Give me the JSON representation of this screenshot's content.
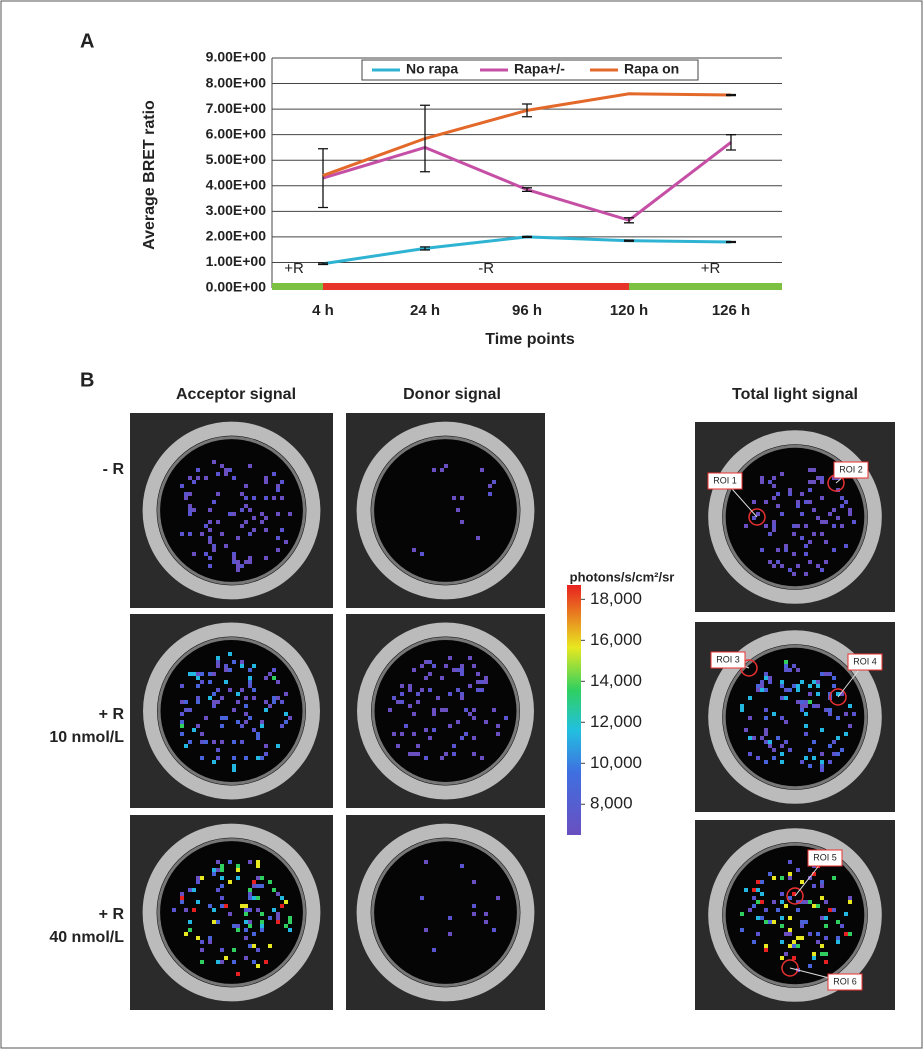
{
  "chart_data": {
    "type": "line",
    "panel": "A",
    "ylabel": "Average BRET ratio",
    "xlabel": "Time points",
    "categories": [
      "4 h",
      "24 h",
      "96 h",
      "120 h",
      "126 h"
    ],
    "series": [
      {
        "name": "No rapa",
        "color": "#2fb3d3",
        "values": [
          0.95,
          1.55,
          2.0,
          1.85,
          1.8
        ],
        "errors": [
          0.03,
          0.06,
          0.02,
          0.02,
          0.02
        ]
      },
      {
        "name": "Rapa+/-",
        "color": "#c64fa6",
        "values": [
          4.3,
          5.5,
          3.85,
          2.65,
          5.7
        ],
        "errors": [
          1.15,
          0,
          0.07,
          0.1,
          0.3
        ]
      },
      {
        "name": "Rapa on",
        "color": "#e3692a",
        "values": [
          4.4,
          5.85,
          6.95,
          7.6,
          7.55
        ],
        "errors": [
          0,
          1.3,
          0.25,
          0,
          0.02
        ]
      }
    ],
    "ylim": [
      0,
      9
    ],
    "yticks": [
      {
        "value": 0,
        "label": "0.00E+00"
      },
      {
        "value": 1,
        "label": "1.00E+00"
      },
      {
        "value": 2,
        "label": "2.00E+00"
      },
      {
        "value": 3,
        "label": "3.00E+00"
      },
      {
        "value": 4,
        "label": "4.00E+00"
      },
      {
        "value": 5,
        "label": "5.00E+00"
      },
      {
        "value": 6,
        "label": "6.00E+00"
      },
      {
        "value": 7,
        "label": "7.00E+00"
      },
      {
        "value": 8,
        "label": "8.00E+00"
      },
      {
        "value": 9,
        "label": "9.00E+00"
      }
    ],
    "grid": true,
    "legend": "top",
    "annotations": [
      "+R",
      "-R",
      "+R"
    ]
  },
  "panel_b": {
    "label": "B",
    "columns": [
      "Acceptor signal",
      "Donor signal",
      "Total light signal"
    ],
    "rows": [
      [
        "- R"
      ],
      [
        "+ R",
        "10 nmol/L"
      ],
      [
        "+ R",
        "40 nmol/L"
      ]
    ],
    "colorbar": {
      "title": "photons/s/cm²/sr",
      "lim": [
        6500,
        18700
      ],
      "ticks": [
        {
          "value": 8000,
          "label": "8,000"
        },
        {
          "value": 10000,
          "label": "10,000"
        },
        {
          "value": 12000,
          "label": "12,000"
        },
        {
          "value": 14000,
          "label": "14,000"
        },
        {
          "value": 16000,
          "label": "16,000"
        },
        {
          "value": 18000,
          "label": "18,000"
        }
      ]
    },
    "rois": [
      "ROI 1",
      "ROI 2",
      "ROI 3",
      "ROI 4",
      "ROI 5",
      "ROI 6"
    ]
  }
}
